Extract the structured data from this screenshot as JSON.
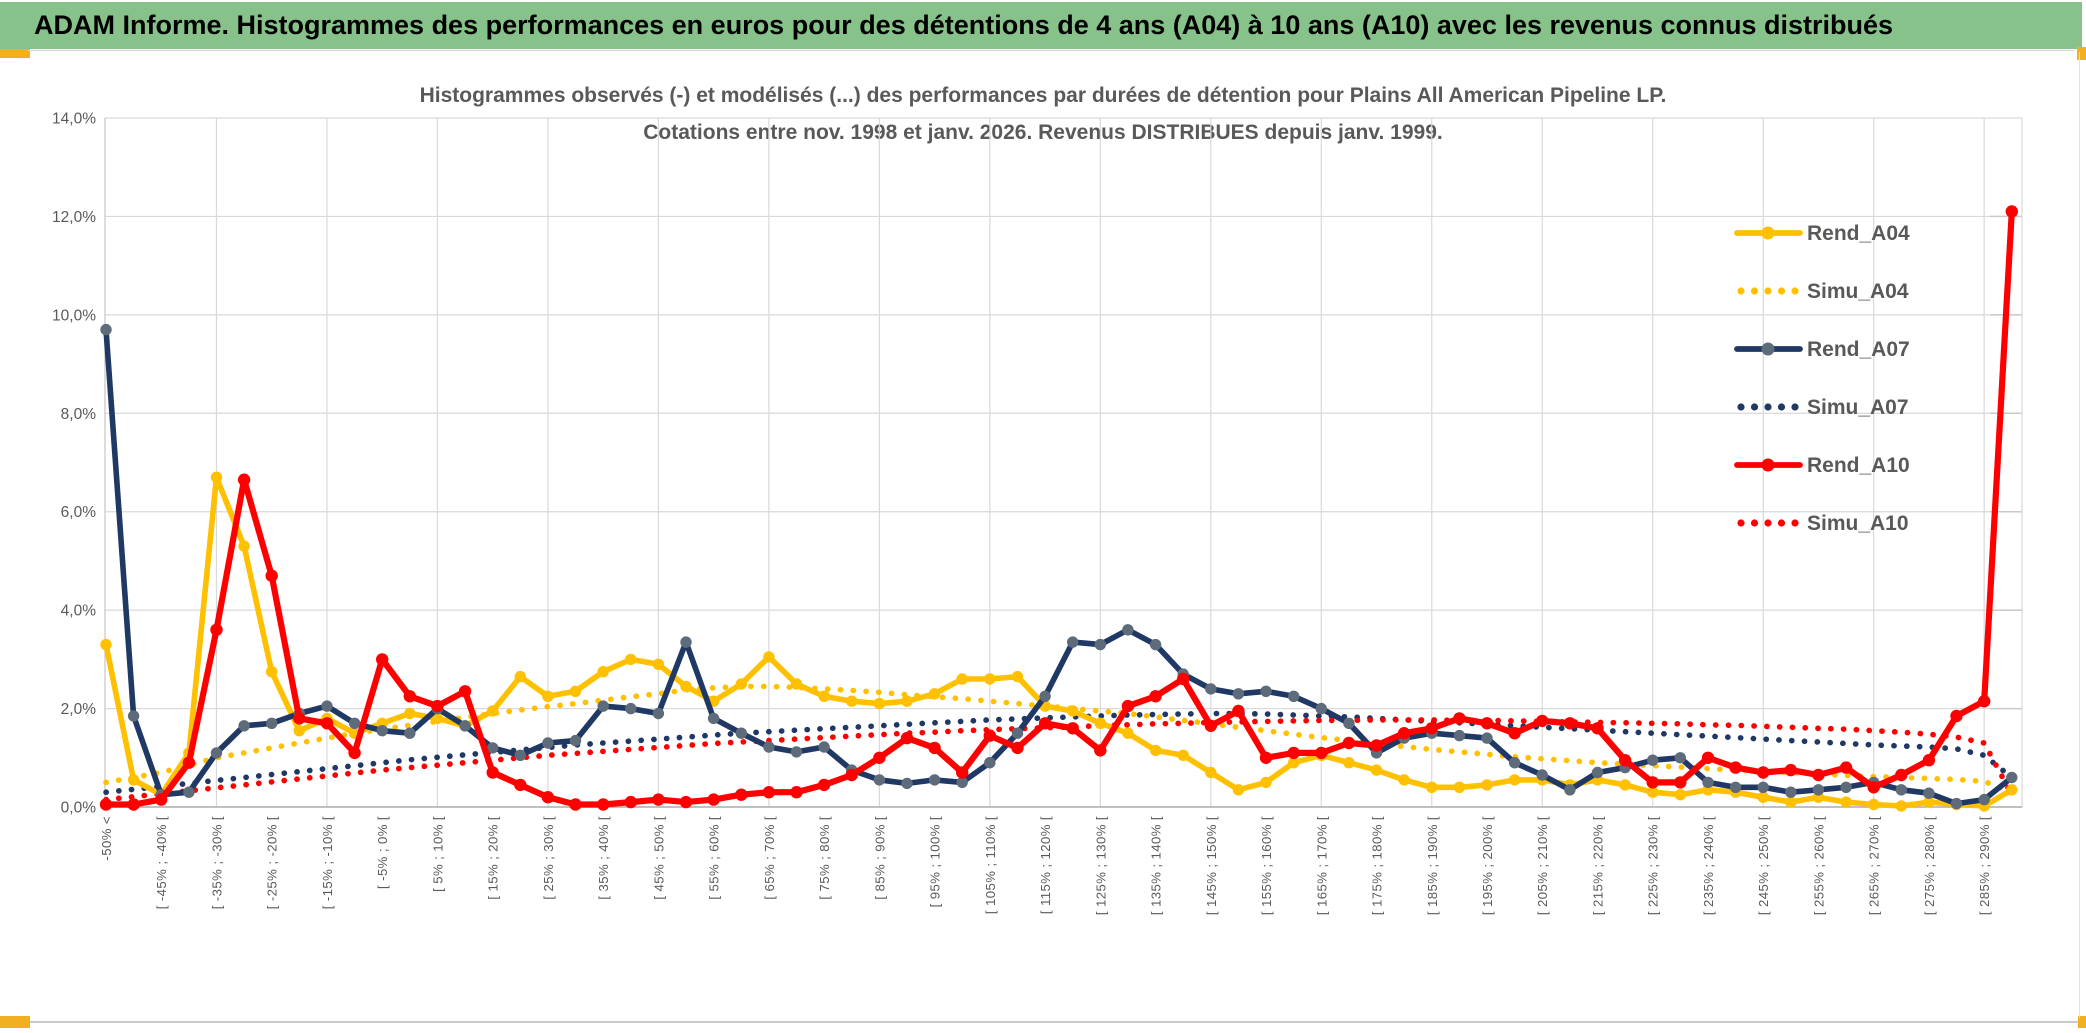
{
  "header": {
    "title": "ADAM Informe. Histogrammes des performances en euros pour des détentions de 4 ans (A04) à 10 ans (A10) avec les revenus connus distribués"
  },
  "colors": {
    "header_green": "#86C289",
    "frame_gold": "#F0B01F",
    "text_gray": "#595959",
    "gridline": "#D9D9D9",
    "series_gold": "#FFC000",
    "series_navy": "#1F3864",
    "series_red": "#FF0000",
    "navy_marker_gray": "#5E6B7A"
  },
  "chart_data": {
    "type": "line",
    "title_line1": "Histogrammes observés (-) et modélisés (...) des performances par durées de détention pour Plains All American Pipeline LP.",
    "title_line2": "Cotations entre nov. 1998 et janv. 2026. Revenus DISTRIBUES depuis janv. 1999.",
    "ylabel": "",
    "xlabel": "",
    "ylim": [
      0,
      14
    ],
    "grid": true,
    "legend_position": "right-inside",
    "y_tick_labels": [
      "0,0%",
      "2,0%",
      "4,0%",
      "6,0%",
      "8,0%",
      "10,0%",
      "12,0%",
      "14,0%"
    ],
    "x_labels_every_other_point": [
      "-50% <",
      "[ -45% ; -40% [",
      "[ -35% ; -30% [",
      "[ -25% ; -20% [",
      "[ -15% ; -10% [",
      "[ -5% ; 0% [",
      "[ 5% ; 10% [",
      "[ 15% ; 20% [",
      "[ 25% ; 30% [",
      "[ 35% ; 40% [",
      "[ 45% ; 50% [",
      "[ 55% ; 60% [",
      "[ 65% ; 70% [",
      "[ 75% ; 80% [",
      "[ 85% ; 90% [",
      "[ 95% ; 100% [",
      "[ 105% ; 110% [",
      "[ 115% ; 120% [",
      "[ 125% ; 130% [",
      "[ 135% ; 140% [",
      "[ 145% ; 150% [",
      "[ 155% ; 160% [",
      "[ 165% ; 170% [",
      "[ 175% ; 180% [",
      "[ 185% ; 190% [",
      "[ 195% ; 200% [",
      "[ 205% ; 210% [",
      "[ 215% ; 220% [",
      "[ 225% ; 230% [",
      "[ 235% ; 240% [",
      "[ 245% ; 250% [",
      "[ 255% ; 260% [",
      "[ 265% ; 270% [",
      "[ 275% ; 280% [",
      "[ 285% ; 290% ["
    ],
    "n_points": 70,
    "series": [
      {
        "name": "Rend_A04",
        "style": "solid",
        "color": "#FFC000",
        "marker_color": "#FFC000",
        "values": [
          3.3,
          0.55,
          0.25,
          1.1,
          6.7,
          5.3,
          2.75,
          1.55,
          1.8,
          1.5,
          1.7,
          1.9,
          1.8,
          1.65,
          1.95,
          2.65,
          2.25,
          2.35,
          2.75,
          3.0,
          2.9,
          2.45,
          2.15,
          2.5,
          3.05,
          2.5,
          2.25,
          2.15,
          2.1,
          2.15,
          2.3,
          2.6,
          2.6,
          2.65,
          2.05,
          1.95,
          1.7,
          1.5,
          1.15,
          1.05,
          0.7,
          0.35,
          0.5,
          0.9,
          1.05,
          0.9,
          0.75,
          0.55,
          0.4,
          0.4,
          0.45,
          0.55,
          0.55,
          0.45,
          0.55,
          0.45,
          0.3,
          0.25,
          0.35,
          0.3,
          0.2,
          0.1,
          0.2,
          0.1,
          0.05,
          0.02,
          0.1,
          0.05,
          0.02,
          0.35
        ]
      },
      {
        "name": "Simu_A04",
        "style": "dotted",
        "color": "#FFC000",
        "values": [
          0.5,
          0.6,
          0.7,
          0.85,
          1.0,
          1.1,
          1.2,
          1.3,
          1.4,
          1.5,
          1.58,
          1.66,
          1.74,
          1.82,
          1.9,
          1.97,
          2.04,
          2.1,
          2.17,
          2.24,
          2.3,
          2.38,
          2.42,
          2.45,
          2.45,
          2.43,
          2.4,
          2.37,
          2.33,
          2.28,
          2.24,
          2.2,
          2.15,
          2.1,
          2.05,
          2.0,
          1.95,
          1.9,
          1.83,
          1.76,
          1.69,
          1.62,
          1.55,
          1.48,
          1.41,
          1.35,
          1.29,
          1.23,
          1.17,
          1.12,
          1.07,
          1.02,
          0.98,
          0.94,
          0.9,
          0.87,
          0.84,
          0.81,
          0.78,
          0.75,
          0.72,
          0.7,
          0.67,
          0.64,
          0.62,
          0.6,
          0.58,
          0.56,
          0.52,
          0.3
        ]
      },
      {
        "name": "Rend_A07",
        "style": "solid",
        "color": "#1F3864",
        "marker_color": "#5E6B7A",
        "values": [
          9.7,
          1.85,
          0.25,
          0.3,
          1.1,
          1.65,
          1.7,
          1.9,
          2.05,
          1.7,
          1.55,
          1.5,
          2.0,
          1.65,
          1.2,
          1.05,
          1.3,
          1.35,
          2.05,
          2.0,
          1.9,
          3.35,
          1.8,
          1.5,
          1.22,
          1.12,
          1.22,
          0.75,
          0.55,
          0.48,
          0.55,
          0.5,
          0.9,
          1.5,
          2.25,
          3.35,
          3.3,
          3.6,
          3.3,
          2.7,
          2.4,
          2.3,
          2.35,
          2.25,
          2.0,
          1.7,
          1.1,
          1.4,
          1.5,
          1.45,
          1.4,
          0.9,
          0.65,
          0.35,
          0.7,
          0.8,
          0.95,
          1.0,
          0.5,
          0.4,
          0.4,
          0.3,
          0.35,
          0.4,
          0.5,
          0.35,
          0.28,
          0.07,
          0.15,
          0.6
        ]
      },
      {
        "name": "Simu_A07",
        "style": "dotted",
        "color": "#1F3864",
        "values": [
          0.3,
          0.36,
          0.42,
          0.48,
          0.54,
          0.6,
          0.66,
          0.72,
          0.78,
          0.84,
          0.9,
          0.96,
          1.01,
          1.06,
          1.11,
          1.16,
          1.21,
          1.26,
          1.3,
          1.34,
          1.38,
          1.42,
          1.46,
          1.5,
          1.53,
          1.56,
          1.59,
          1.62,
          1.65,
          1.68,
          1.71,
          1.74,
          1.77,
          1.79,
          1.81,
          1.83,
          1.85,
          1.87,
          1.88,
          1.89,
          1.9,
          1.9,
          1.89,
          1.87,
          1.85,
          1.83,
          1.8,
          1.77,
          1.74,
          1.71,
          1.68,
          1.65,
          1.62,
          1.59,
          1.56,
          1.53,
          1.5,
          1.47,
          1.44,
          1.41,
          1.38,
          1.35,
          1.32,
          1.29,
          1.26,
          1.24,
          1.22,
          1.18,
          1.05,
          0.6
        ]
      },
      {
        "name": "Rend_A10",
        "style": "solid",
        "color": "#FF0000",
        "marker_color": "#FF0000",
        "values": [
          0.05,
          0.05,
          0.15,
          0.9,
          3.6,
          6.65,
          4.7,
          1.8,
          1.7,
          1.1,
          3.0,
          2.25,
          2.05,
          2.35,
          0.7,
          0.45,
          0.2,
          0.05,
          0.05,
          0.1,
          0.15,
          0.1,
          0.15,
          0.25,
          0.3,
          0.3,
          0.45,
          0.65,
          1.0,
          1.4,
          1.2,
          0.7,
          1.45,
          1.2,
          1.7,
          1.6,
          1.15,
          2.05,
          2.25,
          2.6,
          1.65,
          1.95,
          1.0,
          1.1,
          1.1,
          1.3,
          1.25,
          1.5,
          1.6,
          1.8,
          1.7,
          1.5,
          1.75,
          1.7,
          1.6,
          0.95,
          0.5,
          0.5,
          1.0,
          0.8,
          0.7,
          0.75,
          0.65,
          0.8,
          0.4,
          0.65,
          0.95,
          1.85,
          2.15,
          12.1
        ]
      },
      {
        "name": "Simu_A10",
        "style": "dotted",
        "color": "#FF0000",
        "values": [
          0.15,
          0.21,
          0.27,
          0.33,
          0.39,
          0.45,
          0.51,
          0.57,
          0.63,
          0.69,
          0.75,
          0.8,
          0.85,
          0.9,
          0.95,
          1.0,
          1.05,
          1.09,
          1.13,
          1.17,
          1.21,
          1.25,
          1.29,
          1.32,
          1.35,
          1.38,
          1.41,
          1.44,
          1.47,
          1.5,
          1.52,
          1.55,
          1.57,
          1.59,
          1.61,
          1.63,
          1.65,
          1.67,
          1.69,
          1.7,
          1.72,
          1.73,
          1.74,
          1.75,
          1.76,
          1.76,
          1.77,
          1.77,
          1.77,
          1.76,
          1.76,
          1.75,
          1.74,
          1.73,
          1.72,
          1.71,
          1.7,
          1.69,
          1.67,
          1.66,
          1.64,
          1.62,
          1.6,
          1.58,
          1.55,
          1.52,
          1.48,
          1.42,
          1.3,
          0.25
        ]
      }
    ]
  }
}
